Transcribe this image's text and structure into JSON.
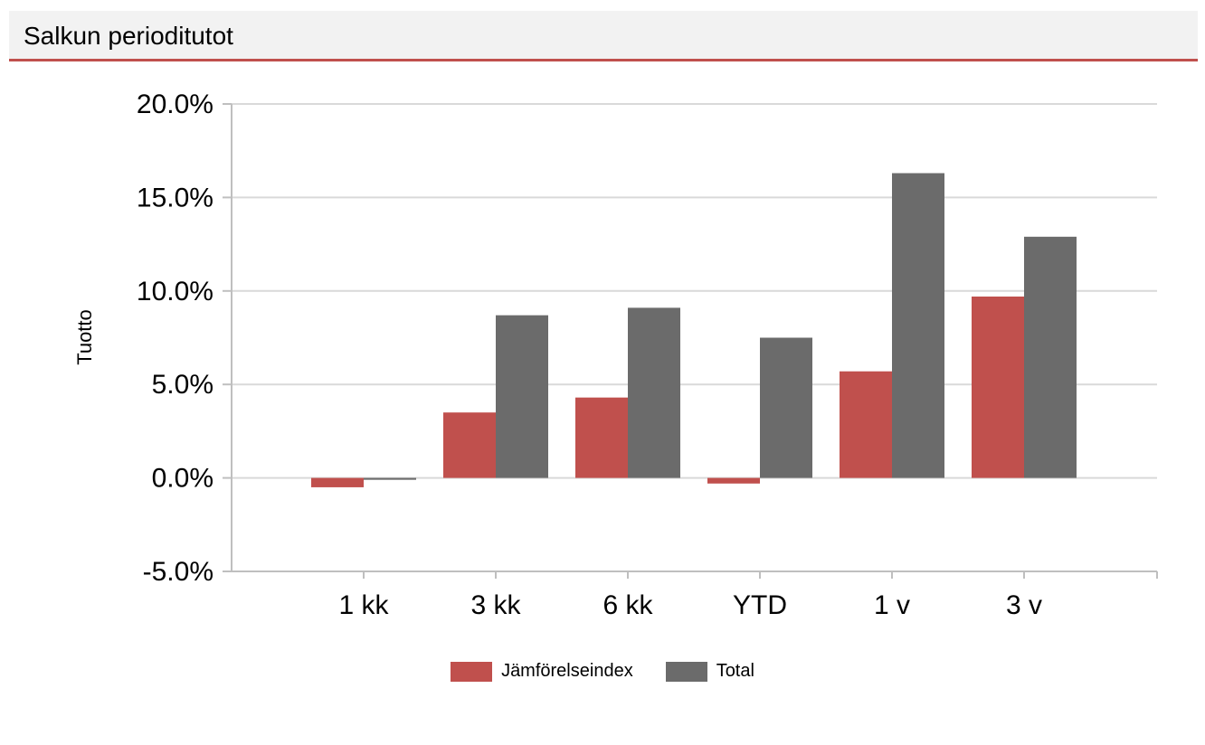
{
  "header": {
    "title": "Salkun perioditutot"
  },
  "colors": {
    "accent": "#c0504d",
    "index_series": "#c0504d",
    "total_series": "#6b6b6b",
    "grid": "#d9d9d9",
    "axis": "#bfbfbf",
    "header_bg": "#f2f2f2"
  },
  "chart_data": {
    "type": "bar",
    "title": "",
    "xlabel": "",
    "ylabel": "Tuotto",
    "ylim": [
      -5.0,
      20.0
    ],
    "yticks": [
      "20.0%",
      "15.0%",
      "10.0%",
      "5.0%",
      "0.0%",
      "-5.0%"
    ],
    "yticks_values": [
      20,
      15,
      10,
      5,
      0,
      -5
    ],
    "grid": true,
    "legend_position": "bottom-center",
    "categories": [
      "1 kk",
      "3 kk",
      "6 kk",
      "YTD",
      "1 v",
      "3 v"
    ],
    "series": [
      {
        "name": "Jämförelseindex",
        "values": [
          -0.5,
          3.5,
          4.3,
          -0.3,
          5.7,
          9.7
        ]
      },
      {
        "name": "Total",
        "values": [
          -0.1,
          8.7,
          9.1,
          7.5,
          16.3,
          12.9
        ]
      }
    ]
  }
}
